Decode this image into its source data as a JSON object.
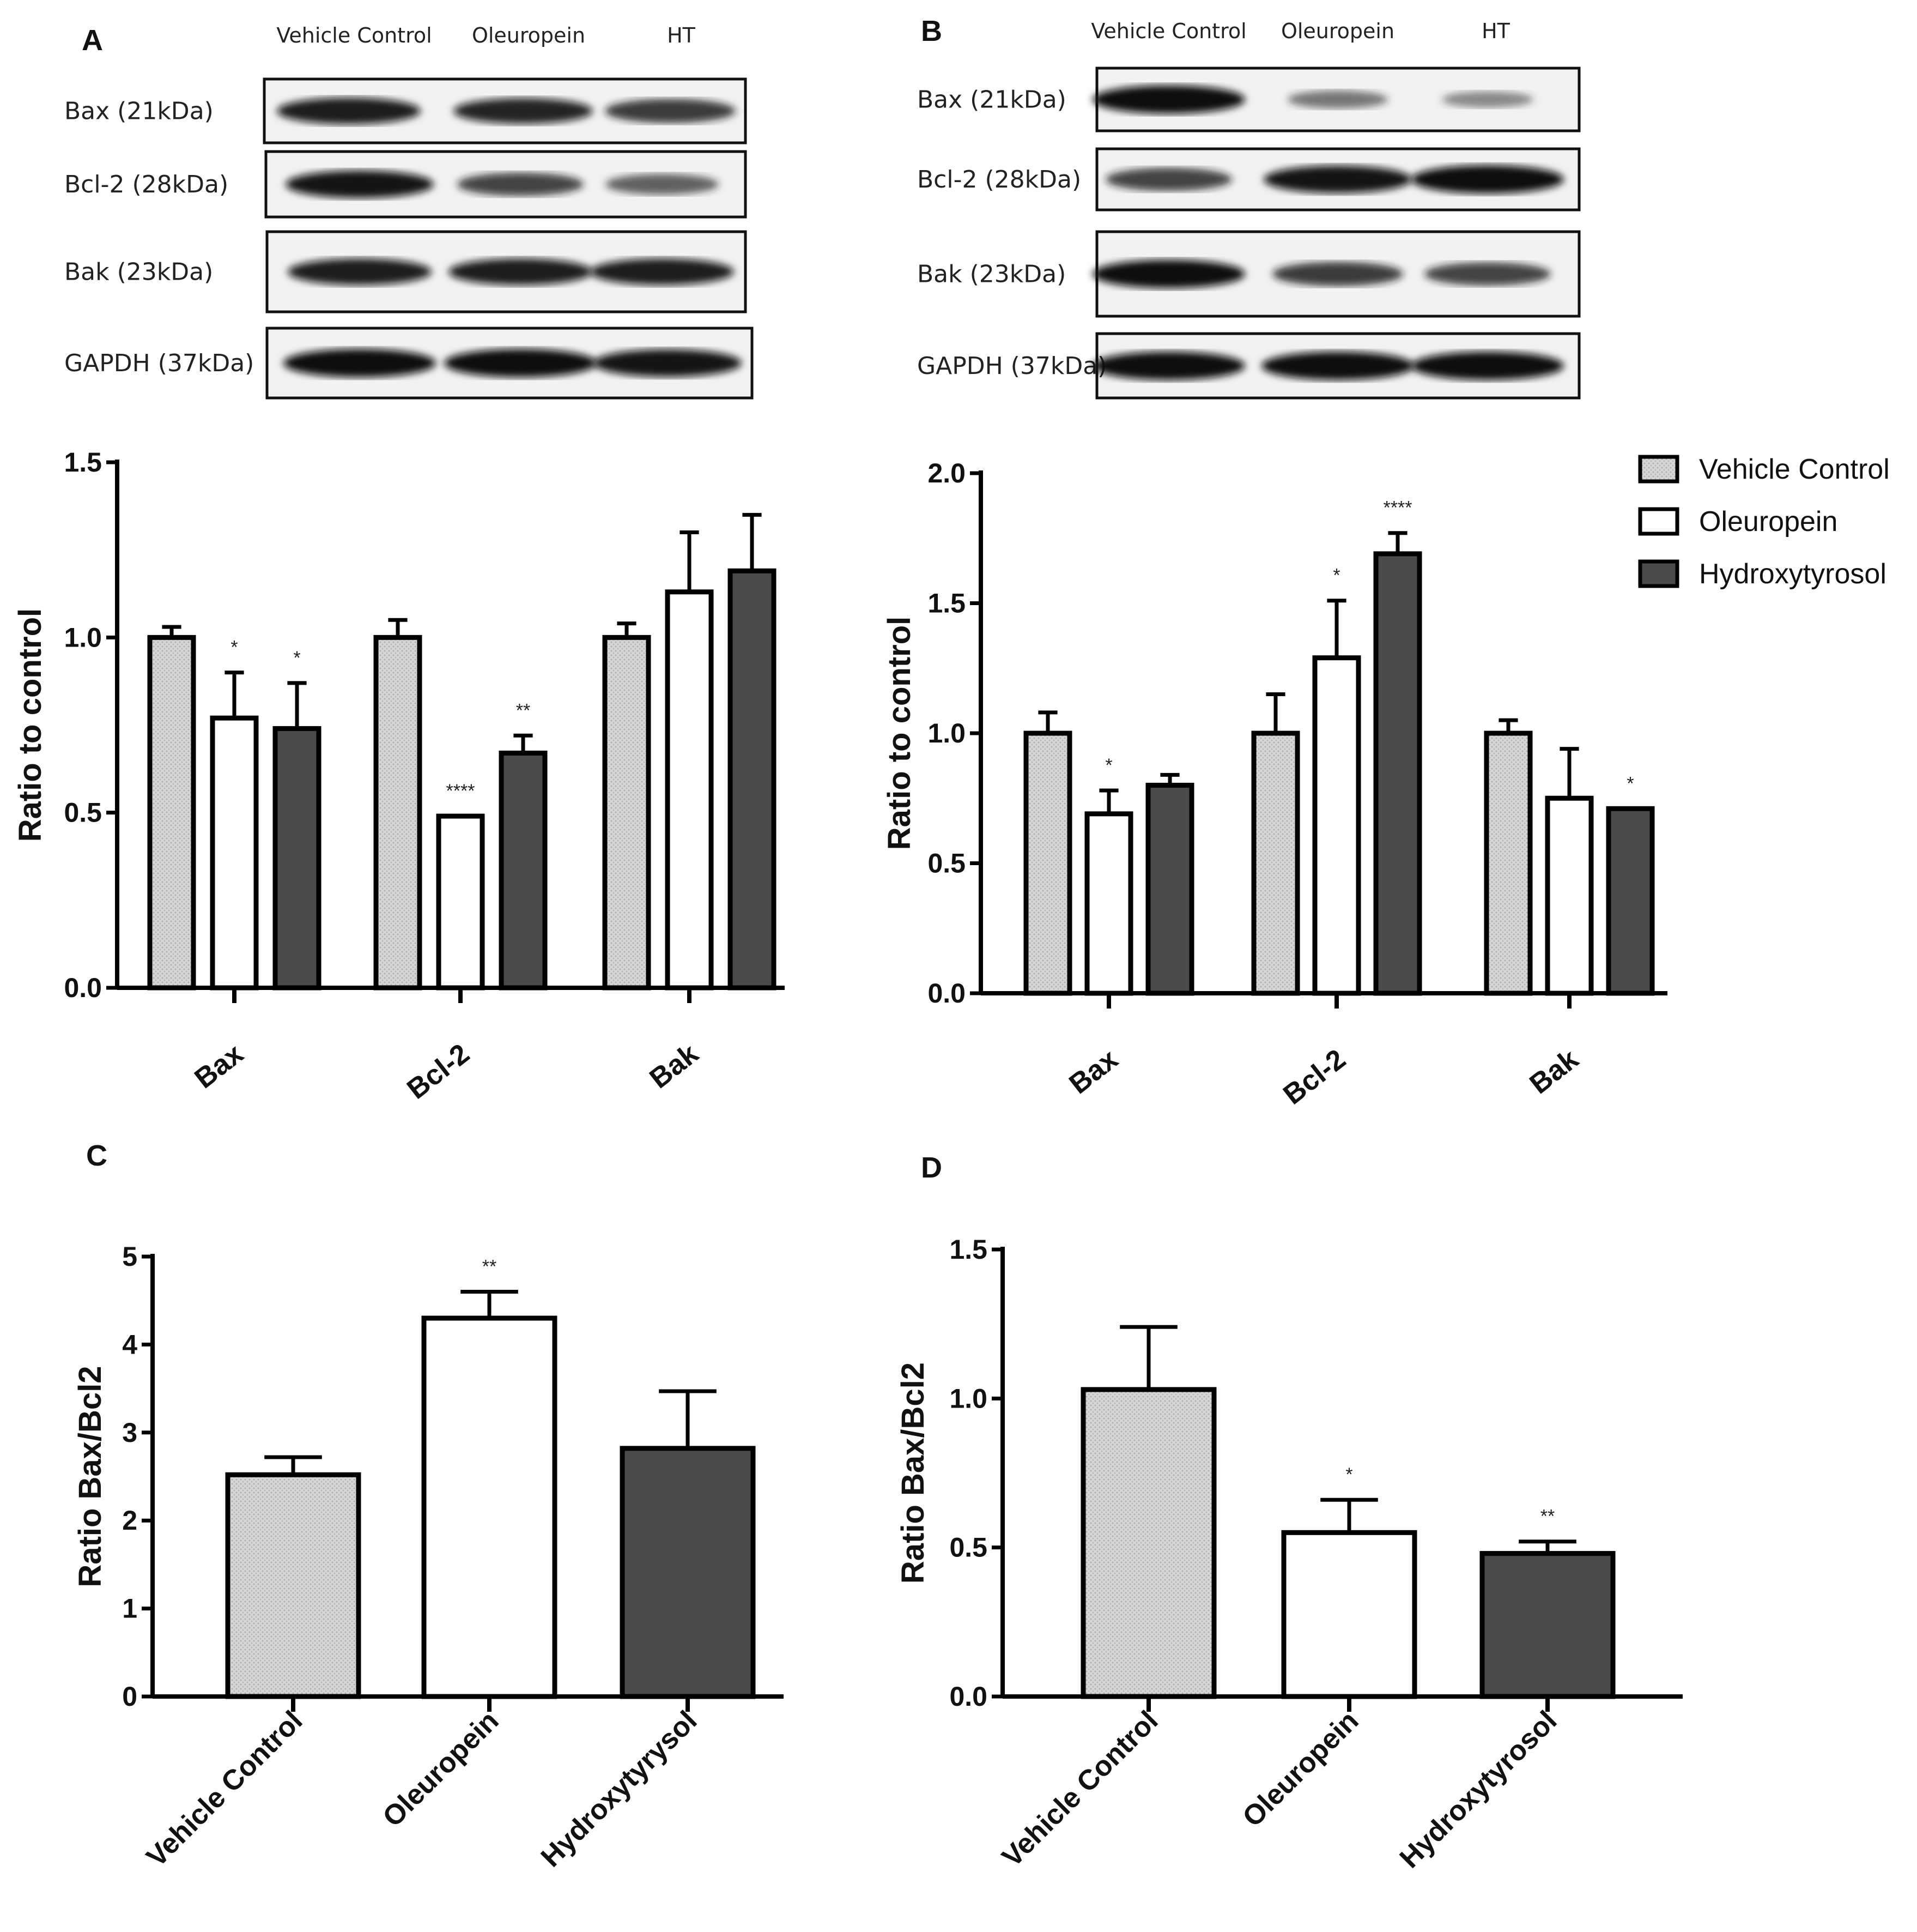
{
  "colors": {
    "vehicle_fill": "#cfcfcf",
    "oleuropein_fill": "#ffffff",
    "hydroxytyrosol_fill": "#4a4a4a",
    "stroke": "#000000"
  },
  "legend": [
    "Vehicle Control",
    "Oleuropein",
    "Hydroxytyrosol"
  ],
  "blots": [
    {
      "panel": "A",
      "lanes": [
        "Vehicle Control",
        "Oleuropein",
        "HT"
      ],
      "rows": [
        {
          "label": "Bax (21kDa)",
          "intensity": [
            0.9,
            0.85,
            0.75
          ]
        },
        {
          "label": "Bcl-2 (28kDa)",
          "intensity": [
            0.95,
            0.7,
            0.55
          ]
        },
        {
          "label": "Bak (23kDa)",
          "intensity": [
            0.9,
            0.9,
            0.9
          ]
        },
        {
          "label": "GAPDH (37kDa)",
          "intensity": [
            1.0,
            1.0,
            0.95
          ]
        }
      ]
    },
    {
      "panel": "B",
      "lanes": [
        "Vehicle Control",
        "Oleuropein",
        "HT"
      ],
      "rows": [
        {
          "label": "Bax (21kDa)",
          "intensity": [
            1.0,
            0.4,
            0.3
          ]
        },
        {
          "label": "Bcl-2 (28kDa)",
          "intensity": [
            0.7,
            0.95,
            1.0
          ]
        },
        {
          "label": "Bak (23kDa)",
          "intensity": [
            1.0,
            0.75,
            0.7
          ]
        },
        {
          "label": "GAPDH (37kDa)",
          "intensity": [
            1.0,
            1.0,
            1.0
          ]
        }
      ]
    }
  ],
  "chart_data": [
    {
      "panel": "A",
      "type": "bar",
      "ylabel": "Ratio to control",
      "ylim": [
        0,
        1.5
      ],
      "yticks": [
        "0.0",
        "0.5",
        "1.0",
        "1.5"
      ],
      "categories": [
        "Bax",
        "Bcl-2",
        "Bak"
      ],
      "series": [
        {
          "name": "Vehicle Control",
          "values": [
            1.0,
            1.0,
            1.0
          ],
          "errors": [
            0.03,
            0.05,
            0.04
          ],
          "sig": [
            "",
            "",
            ""
          ]
        },
        {
          "name": "Oleuropein",
          "values": [
            0.77,
            0.49,
            1.13
          ],
          "errors": [
            0.13,
            0.0,
            0.17
          ],
          "sig": [
            "*",
            "****",
            ""
          ]
        },
        {
          "name": "Hydroxytyrosol",
          "values": [
            0.74,
            0.67,
            1.19
          ],
          "errors": [
            0.13,
            0.05,
            0.16
          ],
          "sig": [
            "*",
            "**",
            ""
          ]
        }
      ]
    },
    {
      "panel": "B",
      "type": "bar",
      "ylabel": "Ratio to control",
      "ylim": [
        0,
        2.0
      ],
      "yticks": [
        "0.0",
        "0.5",
        "1.0",
        "1.5",
        "2.0"
      ],
      "categories": [
        "Bax",
        "Bcl-2",
        "Bak"
      ],
      "series": [
        {
          "name": "Vehicle Control",
          "values": [
            1.0,
            1.0,
            1.0
          ],
          "errors": [
            0.08,
            0.15,
            0.05
          ],
          "sig": [
            "",
            "",
            ""
          ]
        },
        {
          "name": "Oleuropein",
          "values": [
            0.69,
            1.29,
            0.75
          ],
          "errors": [
            0.09,
            0.22,
            0.19
          ],
          "sig": [
            "*",
            "*",
            ""
          ]
        },
        {
          "name": "Hydroxytyrosol",
          "values": [
            0.8,
            1.69,
            0.71
          ],
          "errors": [
            0.04,
            0.08,
            0.0
          ],
          "sig": [
            "",
            "****",
            "*"
          ]
        }
      ]
    },
    {
      "panel": "C",
      "type": "bar",
      "ylabel": "Ratio Bax/Bcl2",
      "ylim": [
        0,
        5
      ],
      "yticks": [
        "0",
        "1",
        "2",
        "3",
        "4",
        "5"
      ],
      "categories": [
        "Vehicle Control",
        "Oleuropein",
        "Hydroxytyrysol"
      ],
      "values": [
        2.52,
        4.3,
        2.82
      ],
      "errors": [
        0.2,
        0.3,
        0.65
      ],
      "sig": [
        "",
        "**",
        ""
      ]
    },
    {
      "panel": "D",
      "type": "bar",
      "ylabel": "Ratio Bax/Bcl2",
      "ylim": [
        0,
        1.5
      ],
      "yticks": [
        "0.0",
        "0.5",
        "1.0",
        "1.5"
      ],
      "categories": [
        "Vehicle Control",
        "Oleuropein",
        "Hydroxytyrosol"
      ],
      "values": [
        1.03,
        0.55,
        0.48
      ],
      "errors": [
        0.21,
        0.11,
        0.04
      ],
      "sig": [
        "",
        "*",
        "**"
      ]
    }
  ]
}
